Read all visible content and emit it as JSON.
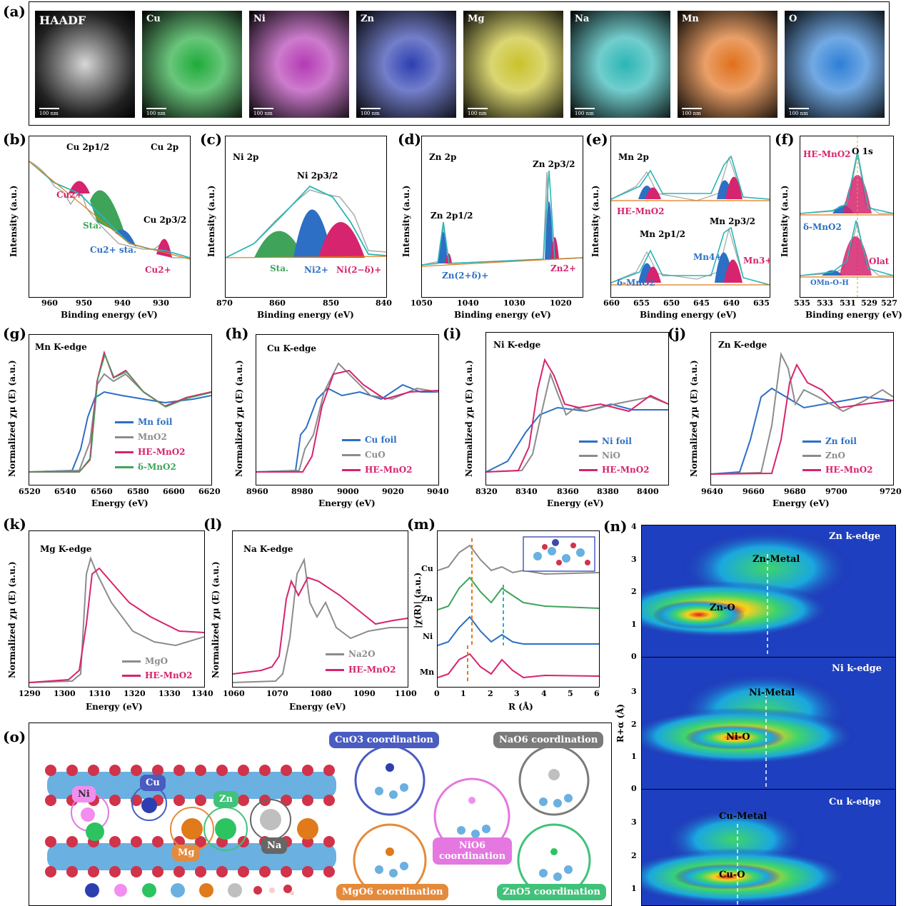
{
  "panels": {
    "a": "(a)",
    "b": "(b)",
    "c": "(c)",
    "d": "(d)",
    "e": "(e)",
    "f": "(f)",
    "g": "(g)",
    "h": "(h)",
    "i": "(i)",
    "j": "(j)",
    "k": "(k)",
    "l": "(l)",
    "m": "(m)",
    "n": "(n)",
    "o": "(o)"
  },
  "eds": {
    "scale": "100 nm",
    "tiles": [
      {
        "name": "HAADF",
        "color": "#bbbbbb"
      },
      {
        "name": "Cu",
        "color": "#1faa3a"
      },
      {
        "name": "Ni",
        "color": "#b43ab4"
      },
      {
        "name": "Zn",
        "color": "#2d3fb0"
      },
      {
        "name": "Mg",
        "color": "#c9c22c"
      },
      {
        "name": "Na",
        "color": "#2cb5b5"
      },
      {
        "name": "Mn",
        "color": "#e0701c"
      },
      {
        "name": "O",
        "color": "#2d7fd6"
      }
    ]
  },
  "xps": {
    "ylabel": "Intensity (a.u.)",
    "xlabel": "Binding energy (eV)",
    "b": {
      "title": "Cu 2p",
      "ticks": [
        "960",
        "950",
        "940",
        "930"
      ],
      "peak1": "Cu 2p1/2",
      "peak2": "Cu 2p3/2",
      "l1": "Cu2+",
      "l2": "Sta.",
      "l3": "Cu2+ sta.",
      "l4": "Cu2+"
    },
    "c": {
      "title": "Ni 2p",
      "ticks": [
        "870",
        "860",
        "850",
        "840"
      ],
      "peak": "Ni 2p3/2",
      "l1": "Sta.",
      "l2": "Ni2+",
      "l3": "Ni(2−δ)+"
    },
    "d": {
      "title": "Zn 2p",
      "ticks": [
        "1050",
        "1040",
        "1030",
        "1020"
      ],
      "peak1": "Zn 2p1/2",
      "peak2": "Zn 2p3/2",
      "l1": "Zn(2+δ)+",
      "l2": "Zn2+"
    },
    "e": {
      "title": "Mn 2p",
      "ticks": [
        "660",
        "655",
        "650",
        "645",
        "640",
        "635"
      ],
      "s1": "HE-MnO2",
      "s2": "δ-MnO2",
      "p1": "Mn 2p1/2",
      "p2": "Mn 2p3/2",
      "l1": "Mn4+",
      "l2": "Mn3+"
    },
    "f": {
      "title": "O 1s",
      "ticks": [
        "535",
        "533",
        "531",
        "529",
        "527"
      ],
      "s1": "HE-MnO2",
      "s2": "δ-MnO2",
      "l1": "Olat",
      "l2": "OMn-O-H"
    }
  },
  "xanes": {
    "ylabel": "Normalized χμ (E) (a.u.)",
    "xlabel": "Energy (eV)",
    "g": {
      "title": "Mn K-edge",
      "ticks": [
        "6520",
        "6540",
        "6560",
        "6580",
        "6600",
        "6620"
      ],
      "legend": [
        "Mn foil",
        "MnO2",
        "HE-MnO2",
        "δ-MnO2"
      ]
    },
    "h": {
      "title": "Cu K-edge",
      "ticks": [
        "8960",
        "8980",
        "9000",
        "9020",
        "9040"
      ],
      "legend": [
        "Cu foil",
        "CuO",
        "HE-MnO2"
      ]
    },
    "i": {
      "title": "Ni K-edge",
      "ticks": [
        "8320",
        "8340",
        "8360",
        "8380",
        "8400"
      ],
      "legend": [
        "Ni foil",
        "NiO",
        "HE-MnO2"
      ]
    },
    "j": {
      "title": "Zn K-edge",
      "ticks": [
        "9640",
        "9660",
        "9680",
        "9700",
        "9720"
      ],
      "legend": [
        "Zn foil",
        "ZnO",
        "HE-MnO2"
      ]
    },
    "k": {
      "title": "Mg K-edge",
      "ticks": [
        "1290",
        "1300",
        "1310",
        "1320",
        "1330",
        "1340"
      ],
      "legend": [
        "MgO",
        "HE-MnO2"
      ]
    },
    "l": {
      "title": "Na K-edge",
      "ticks": [
        "1060",
        "1070",
        "1080",
        "1090",
        "1100"
      ],
      "legend": [
        "Na2O",
        "HE-MnO2"
      ]
    }
  },
  "exafs": {
    "ylabel": "|χ(R)| (a.u.)",
    "xlabel": "R (Å)",
    "ticks": [
      "0",
      "1",
      "2",
      "3",
      "4",
      "5",
      "6"
    ],
    "rows": [
      "Cu",
      "Zn",
      "Ni",
      "Mn"
    ]
  },
  "wavelet": {
    "ylabel": "R+α (Å)",
    "blocks": [
      {
        "title": "Zn k-edge",
        "metal": "Zn-Metal",
        "bond": "Zn-O",
        "ticks": [
          "4",
          "3",
          "2",
          "1",
          "0"
        ]
      },
      {
        "title": "Ni k-edge",
        "metal": "Ni-Metal",
        "bond": "Ni-O",
        "ticks": [
          "3",
          "2",
          "1",
          "0"
        ]
      },
      {
        "title": "Cu k-edge",
        "metal": "Cu-Metal",
        "bond": "Cu-O",
        "ticks": [
          "3",
          "2",
          "1"
        ]
      }
    ]
  },
  "structure": {
    "atoms": [
      "Ni",
      "Cu",
      "Zn",
      "Mg",
      "Na"
    ],
    "coords": [
      {
        "label": "CuO3 coordination",
        "color": "#4a5cc0"
      },
      {
        "label": "NaO6 coordination",
        "color": "#7a7a7a"
      },
      {
        "label": "NiO6 coordination",
        "color": "#e577e0"
      },
      {
        "label": "MgO6 coordination",
        "color": "#e58a3a"
      },
      {
        "label": "ZnO5 coordination",
        "color": "#41c27a"
      }
    ]
  },
  "colors": {
    "blue": "#2d6fc4",
    "grey": "#8c8c8c",
    "pink": "#d6246e",
    "green": "#3fa45a",
    "orange": "#e07a1a"
  }
}
